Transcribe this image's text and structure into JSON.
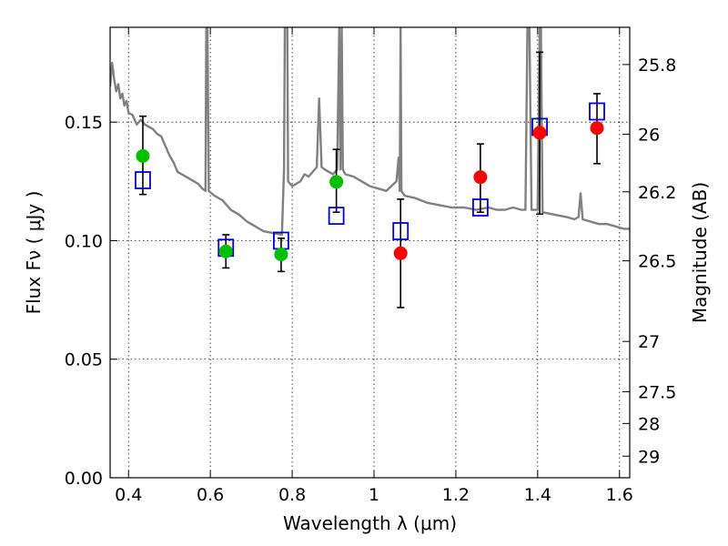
{
  "chart_data": {
    "type": "scatter",
    "title": "",
    "xlabel": "Wavelength  λ (μm)",
    "ylabel": "Flux  Fν  ( μJy )",
    "ylabel_right": "Magnitude (AB)",
    "xlim": [
      0.355,
      1.625
    ],
    "ylim": [
      0.0,
      0.19
    ],
    "grid": true,
    "x_ticks": [
      {
        "value": 0.4,
        "label": "0.4"
      },
      {
        "value": 0.6,
        "label": "0.6"
      },
      {
        "value": 0.8,
        "label": "0.8"
      },
      {
        "value": 1.0,
        "label": "1"
      },
      {
        "value": 1.2,
        "label": "1.2"
      },
      {
        "value": 1.4,
        "label": "1.4"
      },
      {
        "value": 1.6,
        "label": "1.6"
      }
    ],
    "y_ticks": [
      {
        "value": 0.0,
        "label": "0.00"
      },
      {
        "value": 0.05,
        "label": "0.05"
      },
      {
        "value": 0.1,
        "label": "0.10"
      },
      {
        "value": 0.15,
        "label": "0.15"
      }
    ],
    "right_ticks": [
      {
        "label": "25.8",
        "flux": 0.1743
      },
      {
        "label": "26",
        "flux": 0.1449
      },
      {
        "label": "26.2",
        "flux": 0.1206
      },
      {
        "label": "26.5",
        "flux": 0.0915
      },
      {
        "label": "27",
        "flux": 0.0575
      },
      {
        "label": "27.5",
        "flux": 0.0363
      },
      {
        "label": "28",
        "flux": 0.0229
      },
      {
        "label": "29",
        "flux": 0.0091
      }
    ],
    "series": [
      {
        "marker": "circle",
        "color": "#00bf00",
        "points": [
          {
            "x": 0.435,
            "y": 0.1357,
            "yerr_low": 0.1195,
            "yerr_high": 0.1525
          },
          {
            "x": 0.638,
            "y": 0.0955,
            "yerr_low": 0.0885,
            "yerr_high": 0.1025
          },
          {
            "x": 0.773,
            "y": 0.0942,
            "yerr_low": 0.087,
            "yerr_high": 0.101
          },
          {
            "x": 0.908,
            "y": 0.1248,
            "yerr_low": 0.112,
            "yerr_high": 0.1385
          }
        ]
      },
      {
        "marker": "circle",
        "color": "#ff0000",
        "points": [
          {
            "x": 1.065,
            "y": 0.0947,
            "yerr_low": 0.0718,
            "yerr_high": 0.1175
          },
          {
            "x": 1.26,
            "y": 0.1268,
            "yerr_low": 0.112,
            "yerr_high": 0.1408
          },
          {
            "x": 1.405,
            "y": 0.1455,
            "yerr_low": 0.1112,
            "yerr_high": 0.1795
          },
          {
            "x": 1.545,
            "y": 0.1475,
            "yerr_low": 0.1325,
            "yerr_high": 0.162
          }
        ]
      },
      {
        "marker": "square",
        "color": "#0000cc",
        "points": [
          {
            "x": 0.435,
            "y": 0.1255
          },
          {
            "x": 0.638,
            "y": 0.097
          },
          {
            "x": 0.773,
            "y": 0.1
          },
          {
            "x": 0.908,
            "y": 0.1105
          },
          {
            "x": 1.065,
            "y": 0.104
          },
          {
            "x": 1.26,
            "y": 0.114
          },
          {
            "x": 1.405,
            "y": 0.148
          },
          {
            "x": 1.545,
            "y": 0.1545
          }
        ]
      },
      {
        "marker": "line",
        "color": "#808080",
        "points": [
          [
            0.355,
            0.165
          ],
          [
            0.36,
            0.175
          ],
          [
            0.365,
            0.168
          ],
          [
            0.37,
            0.163
          ],
          [
            0.375,
            0.166
          ],
          [
            0.38,
            0.16
          ],
          [
            0.385,
            0.162
          ],
          [
            0.39,
            0.157
          ],
          [
            0.395,
            0.159
          ],
          [
            0.4,
            0.154
          ],
          [
            0.41,
            0.153
          ],
          [
            0.42,
            0.149
          ],
          [
            0.43,
            0.151
          ],
          [
            0.44,
            0.149
          ],
          [
            0.45,
            0.148
          ],
          [
            0.46,
            0.147
          ],
          [
            0.47,
            0.145
          ],
          [
            0.48,
            0.144
          ],
          [
            0.49,
            0.14
          ],
          [
            0.5,
            0.136
          ],
          [
            0.51,
            0.133
          ],
          [
            0.52,
            0.129
          ],
          [
            0.53,
            0.128
          ],
          [
            0.54,
            0.127
          ],
          [
            0.55,
            0.126
          ],
          [
            0.56,
            0.125
          ],
          [
            0.57,
            0.124
          ],
          [
            0.58,
            0.122
          ],
          [
            0.588,
            0.121
          ],
          [
            0.59,
            0.19
          ],
          [
            0.593,
            0.19
          ],
          [
            0.596,
            0.121
          ],
          [
            0.61,
            0.119
          ],
          [
            0.63,
            0.117
          ],
          [
            0.65,
            0.113
          ],
          [
            0.67,
            0.111
          ],
          [
            0.69,
            0.108
          ],
          [
            0.71,
            0.106
          ],
          [
            0.73,
            0.104
          ],
          [
            0.76,
            0.103
          ],
          [
            0.775,
            0.1025
          ],
          [
            0.78,
            0.13
          ],
          [
            0.782,
            0.19
          ],
          [
            0.788,
            0.19
          ],
          [
            0.79,
            0.125
          ],
          [
            0.8,
            0.123
          ],
          [
            0.81,
            0.124
          ],
          [
            0.82,
            0.125
          ],
          [
            0.83,
            0.128
          ],
          [
            0.84,
            0.127
          ],
          [
            0.85,
            0.129
          ],
          [
            0.86,
            0.131
          ],
          [
            0.866,
            0.16
          ],
          [
            0.872,
            0.131
          ],
          [
            0.88,
            0.13
          ],
          [
            0.89,
            0.129
          ],
          [
            0.9,
            0.128
          ],
          [
            0.91,
            0.13
          ],
          [
            0.915,
            0.19
          ],
          [
            0.918,
            0.13
          ],
          [
            0.921,
            0.19
          ],
          [
            0.924,
            0.13
          ],
          [
            0.93,
            0.128
          ],
          [
            0.95,
            0.127
          ],
          [
            0.97,
            0.125
          ],
          [
            0.99,
            0.123
          ],
          [
            1.01,
            0.122
          ],
          [
            1.03,
            0.121
          ],
          [
            1.055,
            0.125
          ],
          [
            1.06,
            0.135
          ],
          [
            1.063,
            0.121
          ],
          [
            1.065,
            0.19
          ],
          [
            1.067,
            0.121
          ],
          [
            1.075,
            0.119
          ],
          [
            1.1,
            0.118
          ],
          [
            1.13,
            0.116
          ],
          [
            1.16,
            0.115
          ],
          [
            1.19,
            0.114
          ],
          [
            1.22,
            0.114
          ],
          [
            1.25,
            0.113
          ],
          [
            1.28,
            0.114
          ],
          [
            1.3,
            0.113
          ],
          [
            1.32,
            0.113
          ],
          [
            1.34,
            0.114
          ],
          [
            1.36,
            0.113
          ],
          [
            1.37,
            0.113
          ],
          [
            1.375,
            0.19
          ],
          [
            1.38,
            0.19
          ],
          [
            1.385,
            0.113
          ],
          [
            1.4,
            0.113
          ],
          [
            1.405,
            0.19
          ],
          [
            1.408,
            0.19
          ],
          [
            1.412,
            0.112
          ],
          [
            1.44,
            0.111
          ],
          [
            1.47,
            0.11
          ],
          [
            1.49,
            0.109
          ],
          [
            1.5,
            0.11
          ],
          [
            1.505,
            0.12
          ],
          [
            1.51,
            0.109
          ],
          [
            1.53,
            0.108
          ],
          [
            1.55,
            0.107
          ],
          [
            1.57,
            0.107
          ],
          [
            1.59,
            0.106
          ],
          [
            1.61,
            0.105
          ],
          [
            1.625,
            0.105
          ]
        ]
      }
    ]
  }
}
